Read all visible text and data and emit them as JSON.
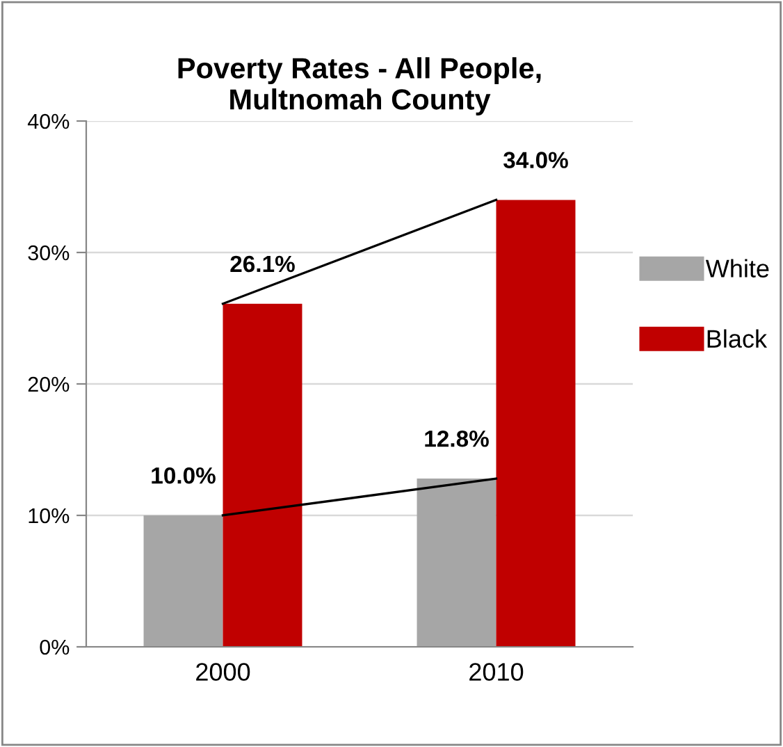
{
  "chart_data": {
    "type": "bar",
    "title": "Poverty Rates - All People,\nMultnomah County",
    "categories": [
      "2000",
      "2010"
    ],
    "series": [
      {
        "name": "White",
        "color": "#a6a6a6",
        "values": [
          10.0,
          12.8
        ],
        "value_labels": [
          "10.0%",
          "12.8%"
        ]
      },
      {
        "name": "Black",
        "color": "#c00000",
        "values": [
          26.1,
          34.0
        ],
        "value_labels": [
          "26.1%",
          "34.0%"
        ]
      },
      {
        "type": "line",
        "color": "#000000",
        "values": [
          10.0,
          12.8
        ]
      },
      {
        "type": "line",
        "color": "#000000",
        "values": [
          26.1,
          34.0
        ]
      }
    ],
    "ylim": [
      0,
      40
    ],
    "yticks": [
      {
        "value": 0,
        "label": "0%"
      },
      {
        "value": 10,
        "label": "10%"
      },
      {
        "value": 20,
        "label": "20%"
      },
      {
        "value": 30,
        "label": "30%"
      },
      {
        "value": 40,
        "label": "40%"
      }
    ],
    "grid": "y",
    "legend": "right"
  }
}
